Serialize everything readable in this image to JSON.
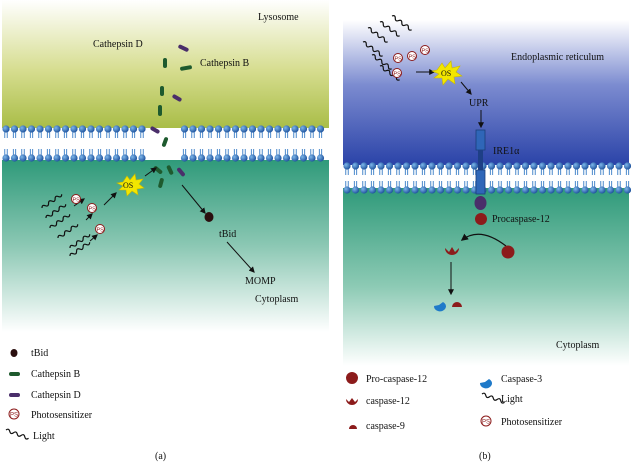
{
  "panel_a": {
    "caption": "(a)",
    "region_top": "Lysosome",
    "region_bottom": "Cytoplasm",
    "labels": {
      "cathepsin_d": "Cathepsin D",
      "cathepsin_b": "Cathepsin B",
      "os": "OS",
      "tbid": "tBid",
      "momp": "MOMP",
      "ps": "PS"
    },
    "legend": [
      {
        "icon": "tbid-icon",
        "label": "tBid"
      },
      {
        "icon": "cathepsin-b-icon",
        "label": "Cathepsin B"
      },
      {
        "icon": "cathepsin-d-icon",
        "label": "Cathepsin D"
      },
      {
        "icon": "photosensitizer-icon",
        "label": "Photosensitizer"
      },
      {
        "icon": "light-icon",
        "label": "Light"
      }
    ]
  },
  "panel_b": {
    "caption": "(b)",
    "region_top": "Endoplasmic reticulum",
    "region_bottom": "Cytoplasm",
    "labels": {
      "os": "OS",
      "upr": "UPR",
      "ire1a": "IRE1α",
      "procaspase12": "Procaspase-12",
      "ps": "PS"
    },
    "legend_left": [
      {
        "icon": "pro-caspase-12-icon",
        "label": "Pro-caspase-12"
      },
      {
        "icon": "caspase-12-icon",
        "label": "caspase-12"
      },
      {
        "icon": "caspase-9-icon",
        "label": "caspase-9"
      }
    ],
    "legend_right": [
      {
        "icon": "caspase-3-icon",
        "label": "Caspase-3"
      },
      {
        "icon": "light-icon",
        "label": "Light"
      },
      {
        "icon": "photosensitizer-icon",
        "label": "Photosensitizer"
      }
    ]
  },
  "colors": {
    "lysosome_top": "#b5c55a",
    "cytoplasm_green": "#3f9e86",
    "er_blue": "#3a4fb0",
    "membrane_blue": "#1f6bbf",
    "cathepsin_b": "#1e5a2e",
    "cathepsin_d": "#4a2e6a",
    "caspase_red": "#8c1b1b",
    "os_yellow": "#f2e600"
  }
}
